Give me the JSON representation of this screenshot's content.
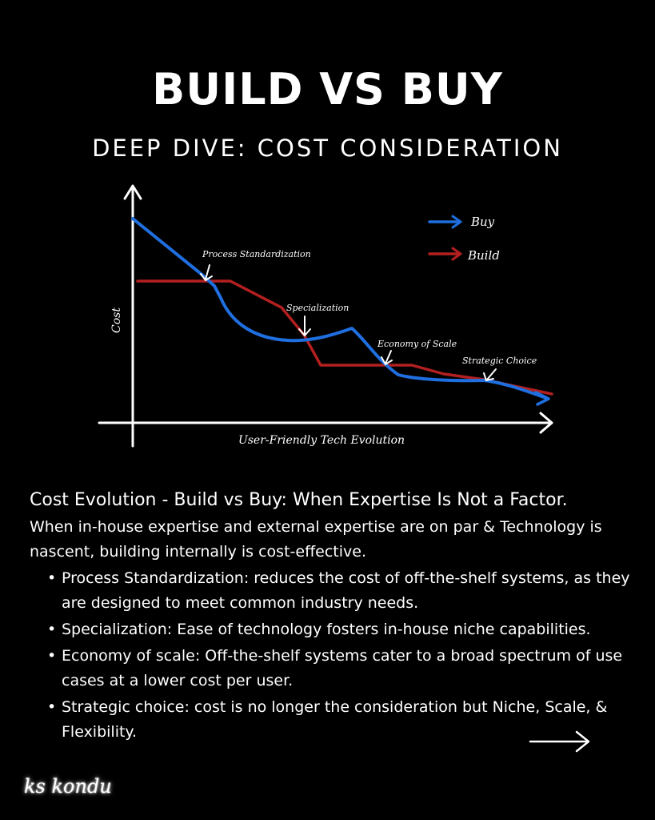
{
  "header": {
    "title": "BUILD VS BUY",
    "subtitle": "DEEP DIVE: COST CONSIDERATION"
  },
  "diagram": {
    "y_axis_label": "Cost",
    "x_axis_label": "User-Friendly Tech Evolution",
    "legend": [
      {
        "name": "Buy",
        "color": "#1f6fe0"
      },
      {
        "name": "Build",
        "color": "#b3201f"
      }
    ],
    "annotations": [
      {
        "id": "process",
        "label": "Process Standardization"
      },
      {
        "id": "specialization",
        "label": "Specialization"
      },
      {
        "id": "economy",
        "label": "Economy of Scale"
      },
      {
        "id": "strategic",
        "label": "Strategic Choice"
      }
    ]
  },
  "content": {
    "heading": "Cost Evolution - Build vs Buy: When Expertise Is Not a Factor.",
    "intro": "When in-house expertise and external expertise are on par & Technology is nascent, building internally is cost-effective.",
    "bullets": [
      "Process Standardization: reduces the cost of off-the-shelf systems, as they are designed to meet common industry needs.",
      "Specialization: Ease of technology fosters in-house niche capabilities.",
      "Economy of scale: Off-the-shelf systems cater to a broad spectrum of use cases at a lower cost per user.",
      "Strategic choice: cost is no longer the consideration but Niche, Scale, & Flexibility."
    ]
  },
  "footer": {
    "signature": "ks kondu",
    "next_icon": "right-arrow-icon"
  }
}
